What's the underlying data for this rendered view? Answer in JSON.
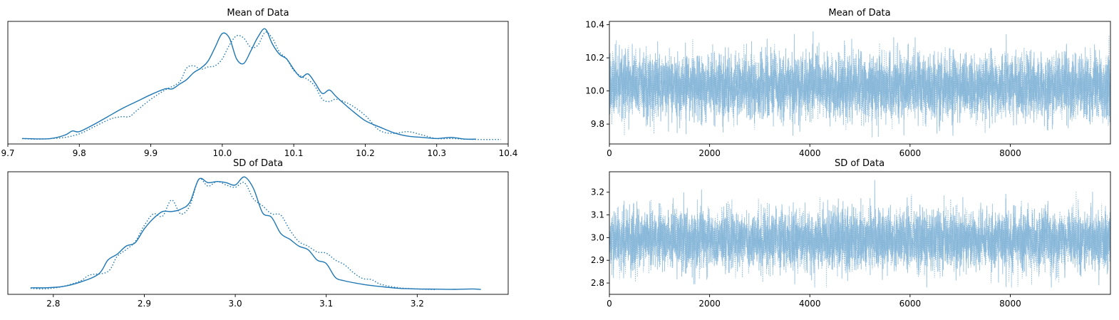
{
  "chart_data": [
    {
      "type": "line",
      "subtype": "density",
      "title": "Mean of Data",
      "xlabel": "",
      "ylabel": "",
      "xlim": [
        9.7,
        10.4
      ],
      "ylim": [
        0,
        1
      ],
      "xticks": [
        "9.7",
        "9.8",
        "9.9",
        "10.0",
        "10.1",
        "10.2",
        "10.3",
        "10.4"
      ],
      "yticks": [],
      "grid": false,
      "series": [
        {
          "line_style": "solid",
          "x": [
            9.72,
            9.74,
            9.76,
            9.78,
            9.79,
            9.8,
            9.82,
            9.84,
            9.86,
            9.88,
            9.9,
            9.92,
            9.93,
            9.94,
            9.95,
            9.96,
            9.97,
            9.98,
            9.99,
            10.0,
            10.01,
            10.02,
            10.03,
            10.04,
            10.05,
            10.06,
            10.07,
            10.08,
            10.09,
            10.1,
            10.11,
            10.12,
            10.13,
            10.14,
            10.15,
            10.16,
            10.18,
            10.2,
            10.22,
            10.24,
            10.26,
            10.28,
            10.3,
            10.32,
            10.34,
            10.355
          ],
          "y": [
            0.01,
            0.007,
            0.01,
            0.04,
            0.075,
            0.07,
            0.13,
            0.2,
            0.27,
            0.33,
            0.39,
            0.44,
            0.44,
            0.48,
            0.52,
            0.58,
            0.62,
            0.68,
            0.8,
            0.92,
            0.88,
            0.7,
            0.66,
            0.77,
            0.89,
            0.96,
            0.83,
            0.74,
            0.7,
            0.61,
            0.54,
            0.57,
            0.49,
            0.4,
            0.43,
            0.37,
            0.26,
            0.165,
            0.11,
            0.06,
            0.03,
            0.02,
            0.01,
            0.02,
            0.005,
            0.005
          ]
        },
        {
          "line_style": "dotted",
          "x": [
            9.72,
            9.74,
            9.76,
            9.78,
            9.8,
            9.82,
            9.84,
            9.85,
            9.86,
            9.87,
            9.88,
            9.9,
            9.92,
            9.94,
            9.95,
            9.96,
            9.97,
            9.98,
            9.99,
            10.0,
            10.01,
            10.02,
            10.03,
            10.04,
            10.05,
            10.06,
            10.07,
            10.08,
            10.09,
            10.1,
            10.11,
            10.12,
            10.13,
            10.14,
            10.15,
            10.16,
            10.18,
            10.2,
            10.22,
            10.24,
            10.26,
            10.28,
            10.3,
            10.32,
            10.34,
            10.36,
            10.39
          ],
          "y": [
            0.01,
            0.005,
            0.01,
            0.02,
            0.05,
            0.11,
            0.17,
            0.19,
            0.2,
            0.2,
            0.25,
            0.35,
            0.43,
            0.5,
            0.62,
            0.64,
            0.61,
            0.63,
            0.64,
            0.7,
            0.82,
            0.9,
            0.88,
            0.8,
            0.82,
            0.93,
            0.88,
            0.76,
            0.7,
            0.6,
            0.55,
            0.52,
            0.46,
            0.35,
            0.33,
            0.35,
            0.3,
            0.21,
            0.08,
            0.055,
            0.07,
            0.04,
            0.01,
            0.01,
            0.005,
            0.002,
            0.002
          ]
        }
      ]
    },
    {
      "type": "line",
      "subtype": "trace",
      "title": "Mean of Data",
      "xlabel": "",
      "ylabel": "",
      "xlim": [
        0,
        9999
      ],
      "ylim": [
        9.68,
        10.42
      ],
      "xticks": [
        "0",
        "2000",
        "4000",
        "6000",
        "8000"
      ],
      "yticks": [
        "9.8",
        "10.0",
        "10.2",
        "10.4"
      ],
      "grid": false,
      "n_draws": 10000,
      "series": [
        {
          "line_style": "solid",
          "center": 10.03,
          "sd": 0.095,
          "min": 9.72,
          "max": 10.36,
          "seed": 17
        },
        {
          "line_style": "dotted",
          "center": 10.03,
          "sd": 0.095,
          "min": 9.72,
          "max": 10.38,
          "seed": 91
        }
      ]
    },
    {
      "type": "line",
      "subtype": "density",
      "title": "SD of Data",
      "xlabel": "",
      "ylabel": "",
      "xlim": [
        2.75,
        3.3
      ],
      "ylim": [
        0,
        1
      ],
      "xticks": [
        "2.8",
        "2.9",
        "3.0",
        "3.1",
        "3.2"
      ],
      "yticks": [],
      "grid": false,
      "series": [
        {
          "line_style": "solid",
          "x": [
            2.775,
            2.79,
            2.81,
            2.83,
            2.85,
            2.86,
            2.87,
            2.88,
            2.89,
            2.9,
            2.91,
            2.92,
            2.93,
            2.94,
            2.95,
            2.96,
            2.97,
            2.98,
            2.99,
            3.0,
            3.01,
            3.02,
            3.03,
            3.04,
            3.05,
            3.06,
            3.07,
            3.08,
            3.09,
            3.1,
            3.11,
            3.12,
            3.14,
            3.16,
            3.18,
            3.2,
            3.22,
            3.24,
            3.26,
            3.27
          ],
          "y": [
            0.02,
            0.02,
            0.03,
            0.07,
            0.14,
            0.26,
            0.31,
            0.38,
            0.41,
            0.53,
            0.62,
            0.68,
            0.68,
            0.7,
            0.76,
            0.96,
            0.93,
            0.94,
            0.93,
            0.91,
            0.98,
            0.88,
            0.67,
            0.63,
            0.49,
            0.44,
            0.38,
            0.35,
            0.26,
            0.23,
            0.11,
            0.08,
            0.05,
            0.03,
            0.015,
            0.01,
            0.008,
            0.006,
            0.01,
            0.005
          ]
        },
        {
          "line_style": "dotted",
          "x": [
            2.775,
            2.79,
            2.81,
            2.83,
            2.84,
            2.86,
            2.87,
            2.88,
            2.89,
            2.9,
            2.91,
            2.92,
            2.93,
            2.94,
            2.95,
            2.96,
            2.97,
            2.98,
            2.99,
            3.0,
            3.01,
            3.02,
            3.03,
            3.04,
            3.05,
            3.06,
            3.07,
            3.08,
            3.09,
            3.1,
            3.11,
            3.12,
            3.13,
            3.14,
            3.15,
            3.16,
            3.18,
            3.2,
            3.22
          ],
          "y": [
            0.015,
            0.01,
            0.03,
            0.08,
            0.13,
            0.16,
            0.29,
            0.35,
            0.42,
            0.56,
            0.66,
            0.64,
            0.78,
            0.66,
            0.73,
            0.96,
            0.9,
            0.94,
            0.91,
            0.89,
            0.93,
            0.79,
            0.73,
            0.66,
            0.65,
            0.52,
            0.42,
            0.38,
            0.33,
            0.32,
            0.26,
            0.22,
            0.15,
            0.1,
            0.09,
            0.05,
            0.02,
            0.01,
            0.005
          ]
        }
      ]
    },
    {
      "type": "line",
      "subtype": "trace",
      "title": "SD of Data",
      "xlabel": "",
      "ylabel": "",
      "xlim": [
        0,
        9999
      ],
      "ylim": [
        2.75,
        3.29
      ],
      "xticks": [
        "0",
        "2000",
        "4000",
        "6000",
        "8000"
      ],
      "yticks": [
        "2.8",
        "2.9",
        "3.0",
        "3.1",
        "3.2"
      ],
      "grid": false,
      "n_draws": 10000,
      "series": [
        {
          "line_style": "solid",
          "center": 2.99,
          "sd": 0.065,
          "min": 2.78,
          "max": 3.27,
          "seed": 29
        },
        {
          "line_style": "dotted",
          "center": 2.99,
          "sd": 0.065,
          "min": 2.78,
          "max": 3.22,
          "seed": 53
        }
      ]
    }
  ],
  "colors": {
    "density_line": "#1f77b4",
    "trace_line": "#7fb1d6",
    "axes": "#000000",
    "background": "#ffffff"
  }
}
